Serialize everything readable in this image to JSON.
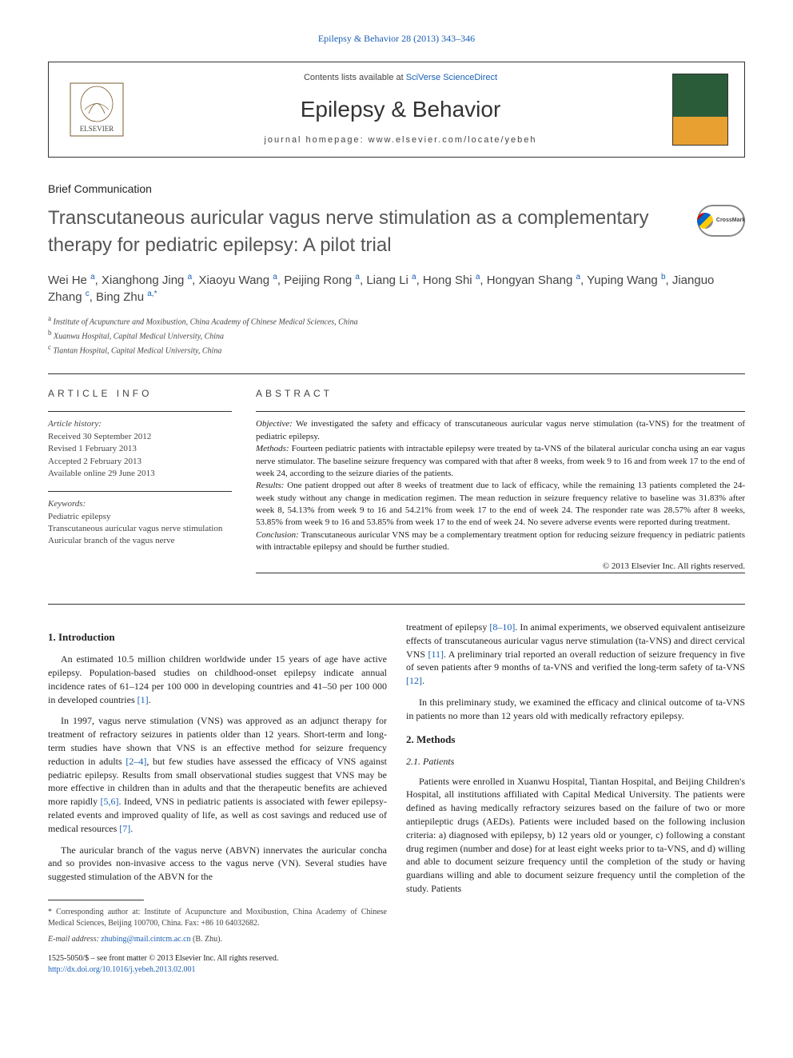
{
  "header": {
    "top_link": "Epilepsy & Behavior 28 (2013) 343–346",
    "contents_prefix": "Contents lists available at ",
    "contents_link": "SciVerse ScienceDirect",
    "journal_name": "Epilepsy & Behavior",
    "homepage": "journal homepage: www.elsevier.com/locate/yebeh",
    "elsevier_text": "ELSEVIER",
    "crossmark": "CrossMark"
  },
  "article": {
    "type": "Brief Communication",
    "title": "Transcutaneous auricular vagus nerve stimulation as a complementary therapy for pediatric epilepsy: A pilot trial",
    "authors_html": "Wei He <sup>a</sup>, Xianghong Jing <sup>a</sup>, Xiaoyu Wang <sup>a</sup>, Peijing Rong <sup>a</sup>, Liang Li <sup>a</sup>, Hong Shi <sup>a</sup>, Hongyan Shang <sup>a</sup>, Yuping Wang <sup>b</sup>, Jianguo Zhang <sup>c</sup>, Bing Zhu <sup>a,*</sup>",
    "affiliations": [
      {
        "sup": "a",
        "text": "Institute of Acupuncture and Moxibustion, China Academy of Chinese Medical Sciences, China"
      },
      {
        "sup": "b",
        "text": "Xuanwu Hospital, Capital Medical University, China"
      },
      {
        "sup": "c",
        "text": "Tiantan Hospital, Capital Medical University, China"
      }
    ]
  },
  "info": {
    "header": "ARTICLE INFO",
    "history": {
      "label": "Article history:",
      "received": "Received 30 September 2012",
      "revised": "Revised 1 February 2013",
      "accepted": "Accepted 2 February 2013",
      "online": "Available online 29 June 2013"
    },
    "keywords": {
      "label": "Keywords:",
      "items": [
        "Pediatric epilepsy",
        "Transcutaneous auricular vagus nerve stimulation",
        "Auricular branch of the vagus nerve"
      ]
    }
  },
  "abstract": {
    "header": "ABSTRACT",
    "objective_label": "Objective:",
    "objective": "We investigated the safety and efficacy of transcutaneous auricular vagus nerve stimulation (ta-VNS) for the treatment of pediatric epilepsy.",
    "methods_label": "Methods:",
    "methods": "Fourteen pediatric patients with intractable epilepsy were treated by ta-VNS of the bilateral auricular concha using an ear vagus nerve stimulator. The baseline seizure frequency was compared with that after 8 weeks, from week 9 to 16 and from week 17 to the end of week 24, according to the seizure diaries of the patients.",
    "results_label": "Results:",
    "results": "One patient dropped out after 8 weeks of treatment due to lack of efficacy, while the remaining 13 patients completed the 24-week study without any change in medication regimen. The mean reduction in seizure frequency relative to baseline was 31.83% after week 8, 54.13% from week 9 to 16 and 54.21% from week 17 to the end of week 24. The responder rate was 28.57% after 8 weeks, 53.85% from week 9 to 16 and 53.85% from week 17 to the end of week 24. No severe adverse events were reported during treatment.",
    "conclusion_label": "Conclusion:",
    "conclusion": "Transcutaneous auricular VNS may be a complementary treatment option for reducing seizure frequency in pediatric patients with intractable epilepsy and should be further studied.",
    "copyright": "© 2013 Elsevier Inc. All rights reserved."
  },
  "body": {
    "intro_heading": "1. Introduction",
    "intro_p1": "An estimated 10.5 million children worldwide under 15 years of age have active epilepsy. Population-based studies on childhood-onset epilepsy indicate annual incidence rates of 61–124 per 100 000 in developing countries and 41–50 per 100 000 in developed countries ",
    "intro_p1_cite": "[1]",
    "intro_p1_end": ".",
    "intro_p2_a": "In 1997, vagus nerve stimulation (VNS) was approved as an adjunct therapy for treatment of refractory seizures in patients older than 12 years. Short-term and long-term studies have shown that VNS is an effective method for seizure frequency reduction in adults ",
    "intro_p2_cite1": "[2–4]",
    "intro_p2_b": ", but few studies have assessed the efficacy of VNS against pediatric epilepsy. Results from small observational studies suggest that VNS may be more effective in children than in adults and that the therapeutic benefits are achieved more rapidly ",
    "intro_p2_cite2": "[5,6]",
    "intro_p2_c": ". Indeed, VNS in pediatric patients is associated with fewer epilepsy-related events and improved quality of life, as well as cost savings and reduced use of medical resources ",
    "intro_p2_cite3": "[7]",
    "intro_p2_d": ".",
    "intro_p3": "The auricular branch of the vagus nerve (ABVN) innervates the auricular concha and so provides non-invasive access to the vagus nerve (VN). Several studies have suggested stimulation of the ABVN for the",
    "col2_p1_a": "treatment of epilepsy ",
    "col2_p1_cite1": "[8–10]",
    "col2_p1_b": ". In animal experiments, we observed equivalent antiseizure effects of transcutaneous auricular vagus nerve stimulation (ta-VNS) and direct cervical VNS ",
    "col2_p1_cite2": "[11]",
    "col2_p1_c": ". A preliminary trial reported an overall reduction of seizure frequency in five of seven patients after 9 months of ta-VNS and verified the long-term safety of ta-VNS ",
    "col2_p1_cite3": "[12]",
    "col2_p1_d": ".",
    "col2_p2": "In this preliminary study, we examined the efficacy and clinical outcome of ta-VNS in patients no more than 12 years old with medically refractory epilepsy.",
    "methods_heading": "2. Methods",
    "patients_heading": "2.1. Patients",
    "patients_p": "Patients were enrolled in Xuanwu Hospital, Tiantan Hospital, and Beijing Children's Hospital, all institutions affiliated with Capital Medical University. The patients were defined as having medically refractory seizures based on the failure of two or more antiepileptic drugs (AEDs). Patients were included based on the following inclusion criteria: a) diagnosed with epilepsy, b) 12 years old or younger, c) following a constant drug regimen (number and dose) for at least eight weeks prior to ta-VNS, and d) willing and able to document seizure frequency until the completion of the study or having guardians willing and able to document seizure frequency until the completion of the study. Patients"
  },
  "footer": {
    "corr": "* Corresponding author at: Institute of Acupuncture and Moxibustion, China Academy of Chinese Medical Sciences, Beijing 100700, China. Fax: +86 10 64032682.",
    "email_label": "E-mail address:",
    "email": "zhubing@mail.cintcm.ac.cn",
    "email_name": "(B. Zhu).",
    "front_matter": "1525-5050/$ – see front matter © 2013 Elsevier Inc. All rights reserved.",
    "doi": "http://dx.doi.org/10.1016/j.yebeh.2013.02.001"
  },
  "colors": {
    "link": "#1a5fb4",
    "text": "#222222",
    "muted": "#444444",
    "border": "#333333"
  }
}
